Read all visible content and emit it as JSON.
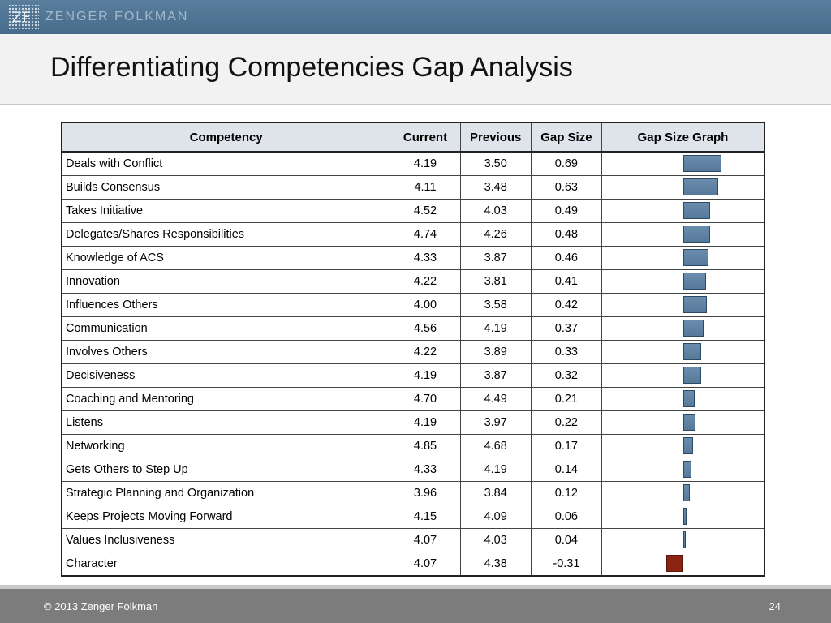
{
  "header": {
    "logo_mark": "ZF",
    "logo_text": "ZENGER FOLKMAN"
  },
  "slide": {
    "title": "Differentiating Competencies Gap Analysis"
  },
  "table": {
    "headers": [
      "Competency",
      "Current",
      "Previous",
      "Gap Size",
      "Gap Size Graph"
    ],
    "rows": [
      {
        "name": "Deals with Conflict",
        "current": "4.19",
        "previous": "3.50",
        "gap": "0.69"
      },
      {
        "name": "Builds Consensus",
        "current": "4.11",
        "previous": "3.48",
        "gap": "0.63"
      },
      {
        "name": "Takes Initiative",
        "current": "4.52",
        "previous": "4.03",
        "gap": "0.49"
      },
      {
        "name": "Delegates/Shares Responsibilities",
        "current": "4.74",
        "previous": "4.26",
        "gap": "0.48"
      },
      {
        "name": "Knowledge of ACS",
        "current": "4.33",
        "previous": "3.87",
        "gap": "0.46"
      },
      {
        "name": "Innovation",
        "current": "4.22",
        "previous": "3.81",
        "gap": "0.41"
      },
      {
        "name": "Influences Others",
        "current": "4.00",
        "previous": "3.58",
        "gap": "0.42"
      },
      {
        "name": "Communication",
        "current": "4.56",
        "previous": "4.19",
        "gap": "0.37"
      },
      {
        "name": "Involves Others",
        "current": "4.22",
        "previous": "3.89",
        "gap": "0.33"
      },
      {
        "name": "Decisiveness",
        "current": "4.19",
        "previous": "3.87",
        "gap": "0.32"
      },
      {
        "name": "Coaching and Mentoring",
        "current": "4.70",
        "previous": "4.49",
        "gap": "0.21"
      },
      {
        "name": "Listens",
        "current": "4.19",
        "previous": "3.97",
        "gap": "0.22"
      },
      {
        "name": "Networking",
        "current": "4.85",
        "previous": "4.68",
        "gap": "0.17"
      },
      {
        "name": "Gets Others to Step Up",
        "current": "4.33",
        "previous": "4.19",
        "gap": "0.14"
      },
      {
        "name": "Strategic Planning and Organization",
        "current": "3.96",
        "previous": "3.84",
        "gap": "0.12"
      },
      {
        "name": "Keeps Projects Moving Forward",
        "current": "4.15",
        "previous": "4.09",
        "gap": "0.06"
      },
      {
        "name": "Values Inclusiveness",
        "current": "4.07",
        "previous": "4.03",
        "gap": "0.04"
      },
      {
        "name": "Character",
        "current": "4.07",
        "previous": "4.38",
        "gap": "-0.31"
      }
    ]
  },
  "colors": {
    "positive_bar": "#5f83a4",
    "negative_bar": "#8b2312",
    "header_bg": "#dfe4ea",
    "top_bar": "#4f7594"
  },
  "footer": {
    "copyright": "© 2013  Zenger Folkman",
    "page_number": "24"
  }
}
